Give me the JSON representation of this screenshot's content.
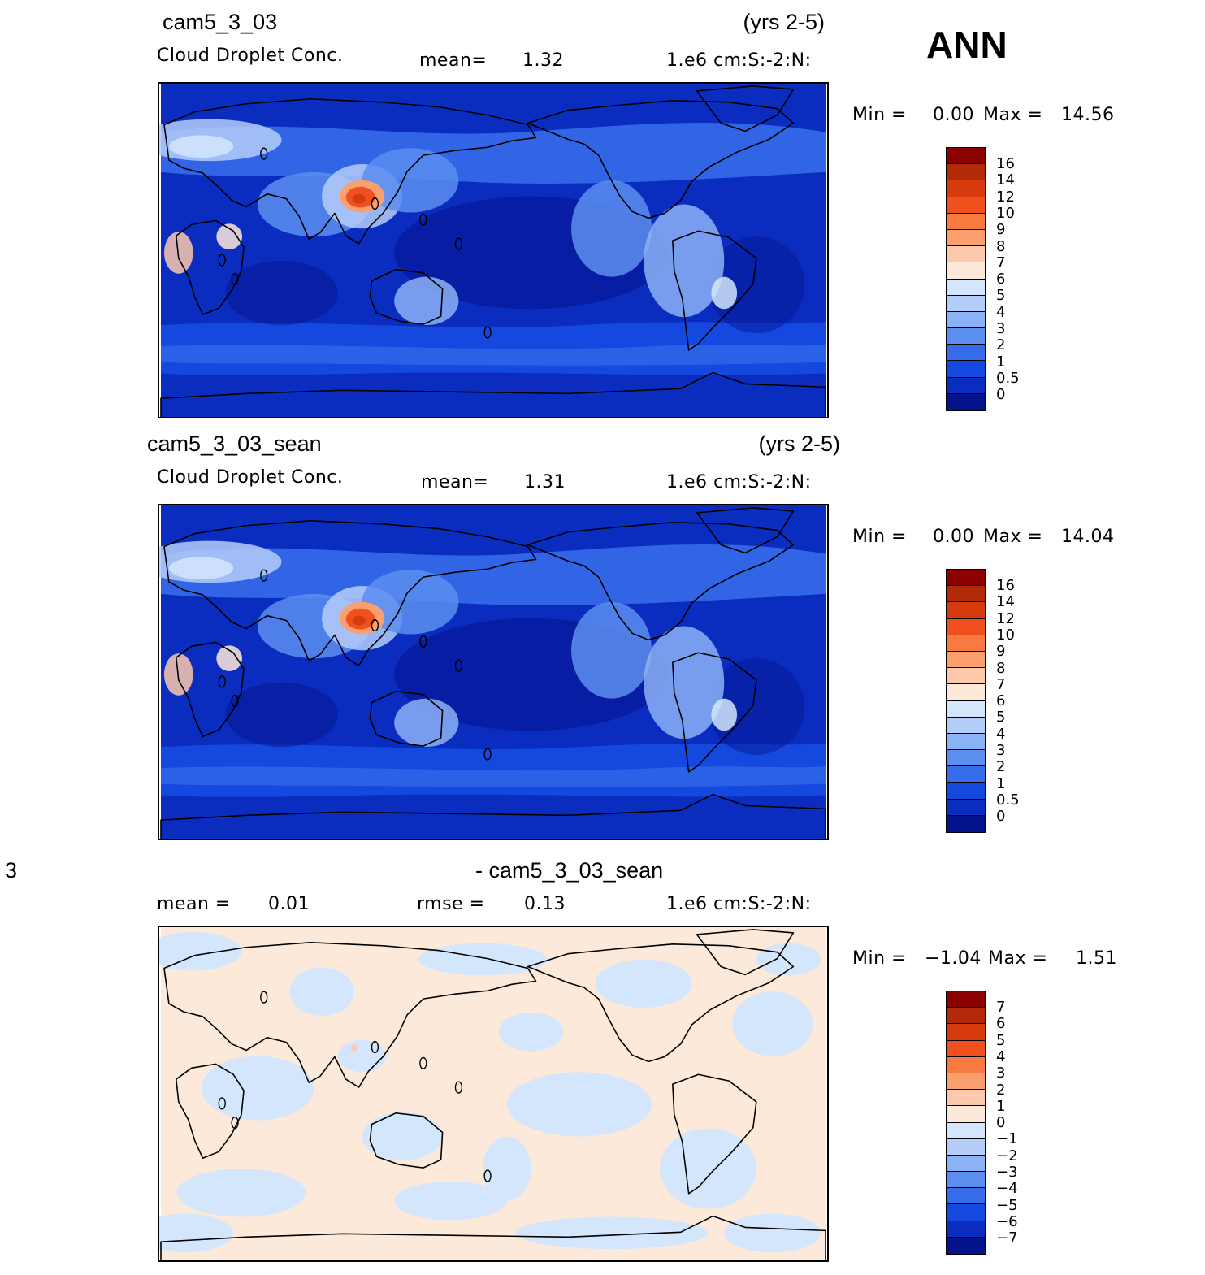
{
  "season": "ANN",
  "panels": [
    {
      "case": "cam5_3_03",
      "years": "(yrs 2-5)",
      "variable": "Cloud Droplet Conc.",
      "stat_label": "mean=",
      "stat_value": "1.32",
      "units": "1.e6 cm:S:-2:N:",
      "min_label": "Min  =",
      "min_value": "0.00",
      "max_label": "Max  =",
      "max_value": "14.56",
      "colorbar_labels": [
        "16",
        "14",
        "12",
        "10",
        "9",
        "8",
        "7",
        "6",
        "5",
        "4",
        "3",
        "2",
        "1",
        "0.5",
        "0"
      ]
    },
    {
      "case": "cam5_3_03_sean",
      "years": "(yrs 2-5)",
      "variable": "Cloud Droplet Conc.",
      "stat_label": "mean=",
      "stat_value": "1.31",
      "units": "1.e6 cm:S:-2:N:",
      "min_label": "Min  =",
      "min_value": "0.00",
      "max_label": "Max  =",
      "max_value": "14.04",
      "colorbar_labels": [
        "16",
        "14",
        "12",
        "10",
        "9",
        "8",
        "7",
        "6",
        "5",
        "4",
        "3",
        "2",
        "1",
        "0.5",
        "0"
      ]
    }
  ],
  "diff": {
    "left_fragment": "3",
    "title": "- cam5_3_03_sean",
    "mean_label": "mean =",
    "mean_value": "0.01",
    "rmse_label": "rmse =",
    "rmse_value": "0.13",
    "units": "1.e6 cm:S:-2:N:",
    "min_label": "Min  =",
    "min_value": "−1.04",
    "max_label": "Max  =",
    "max_value": "1.51",
    "colorbar_labels": [
      "7",
      "6",
      "5",
      "4",
      "3",
      "2",
      "1",
      "0",
      "−1",
      "−2",
      "−3",
      "−4",
      "−5",
      "−6",
      "−7"
    ]
  },
  "colors": {
    "field_scale": [
      "#8b0000",
      "#b22a0a",
      "#d73a0c",
      "#ef501e",
      "#f97a40",
      "#fb9f6e",
      "#fcc9ad",
      "#fde9d9",
      "#d3e6fb",
      "#b4cdf9",
      "#8cb2f6",
      "#5c8ef0",
      "#356cea",
      "#1448de",
      "#0a2cbf",
      "#05138c"
    ],
    "diff_scale": [
      "#8b0000",
      "#b22a0a",
      "#d73a0c",
      "#ef501e",
      "#f97a40",
      "#fb9f6e",
      "#fcc9ad",
      "#fde9d9",
      "#d3e6fb",
      "#b4cdf9",
      "#8cb2f6",
      "#5c8ef0",
      "#356cea",
      "#1448de",
      "#0a2cbf",
      "#05138c"
    ]
  }
}
